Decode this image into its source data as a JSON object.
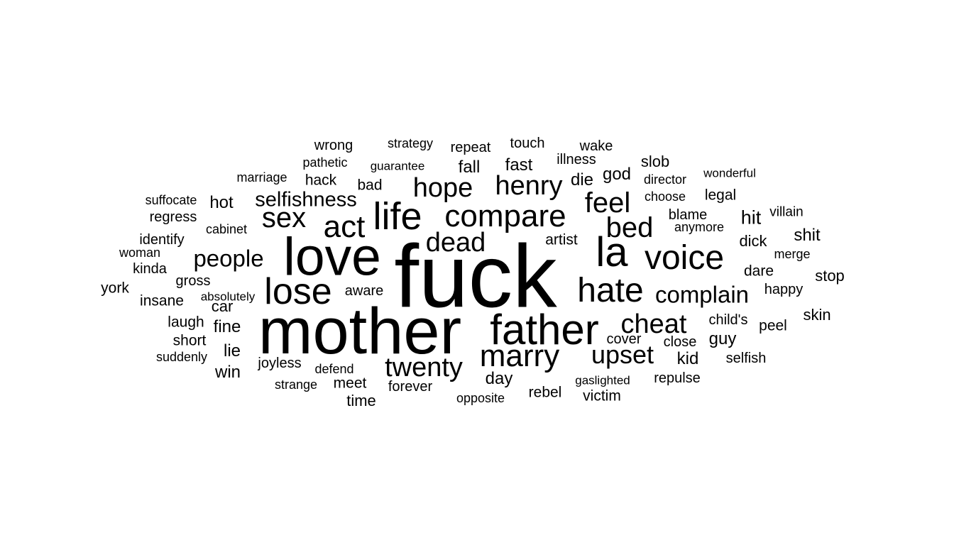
{
  "wordcloud": {
    "text_color": "#000000",
    "background": "#ffffff",
    "words": [
      {
        "text": "fuck",
        "weight": 100
      },
      {
        "text": "mother",
        "weight": 85
      },
      {
        "text": "love",
        "weight": 70
      },
      {
        "text": "father",
        "weight": 55
      },
      {
        "text": "la",
        "weight": 52
      },
      {
        "text": "life",
        "weight": 50
      },
      {
        "text": "lose",
        "weight": 48
      },
      {
        "text": "marry",
        "weight": 45
      },
      {
        "text": "voice",
        "weight": 45
      },
      {
        "text": "hate",
        "weight": 45
      },
      {
        "text": "compare",
        "weight": 40
      },
      {
        "text": "act",
        "weight": 40
      },
      {
        "text": "sex",
        "weight": 38
      },
      {
        "text": "feel",
        "weight": 38
      },
      {
        "text": "bed",
        "weight": 38
      },
      {
        "text": "twenty",
        "weight": 35
      },
      {
        "text": "cheat",
        "weight": 35
      },
      {
        "text": "hope",
        "weight": 35
      },
      {
        "text": "henry",
        "weight": 35
      },
      {
        "text": "dead",
        "weight": 35
      },
      {
        "text": "upset",
        "weight": 33
      },
      {
        "text": "complain",
        "weight": 32
      },
      {
        "text": "people",
        "weight": 32
      },
      {
        "text": "selfishness",
        "weight": 28
      },
      {
        "text": "hit",
        "weight": 25
      },
      {
        "text": "shit",
        "weight": 22
      },
      {
        "text": "fall",
        "weight": 22
      },
      {
        "text": "fast",
        "weight": 22
      },
      {
        "text": "hot",
        "weight": 22
      },
      {
        "text": "die",
        "weight": 22
      },
      {
        "text": "lie",
        "weight": 22
      },
      {
        "text": "car",
        "weight": 22
      },
      {
        "text": "fine",
        "weight": 22
      },
      {
        "text": "guy",
        "weight": 22
      },
      {
        "text": "kid",
        "weight": 22
      },
      {
        "text": "god",
        "weight": 22
      },
      {
        "text": "slob",
        "weight": 22
      },
      {
        "text": "stop",
        "weight": 22
      },
      {
        "text": "skin",
        "weight": 22
      },
      {
        "text": "day",
        "weight": 22
      },
      {
        "text": "time",
        "weight": 22
      },
      {
        "text": "win",
        "weight": 22
      },
      {
        "text": "wrong",
        "weight": 20
      },
      {
        "text": "touch",
        "weight": 20
      },
      {
        "text": "wake",
        "weight": 20
      },
      {
        "text": "repeat",
        "weight": 20
      },
      {
        "text": "hack",
        "weight": 20
      },
      {
        "text": "bad",
        "weight": 20
      },
      {
        "text": "legal",
        "weight": 20
      },
      {
        "text": "blame",
        "weight": 20
      },
      {
        "text": "dick",
        "weight": 20
      },
      {
        "text": "dare",
        "weight": 20
      },
      {
        "text": "artist",
        "weight": 20
      },
      {
        "text": "illness",
        "weight": 20
      },
      {
        "text": "york",
        "weight": 20
      },
      {
        "text": "insane",
        "weight": 20
      },
      {
        "text": "laugh",
        "weight": 20
      },
      {
        "text": "short",
        "weight": 20
      },
      {
        "text": "meet",
        "weight": 20
      },
      {
        "text": "forever",
        "weight": 20
      },
      {
        "text": "rebel",
        "weight": 20
      },
      {
        "text": "victim",
        "weight": 20
      },
      {
        "text": "peel",
        "weight": 20
      },
      {
        "text": "happy",
        "weight": 20
      },
      {
        "text": "close",
        "weight": 20
      },
      {
        "text": "cover",
        "weight": 20
      },
      {
        "text": "aware",
        "weight": 20
      },
      {
        "text": "child's",
        "weight": 20
      },
      {
        "text": "gross",
        "weight": 20
      },
      {
        "text": "kinda",
        "weight": 20
      },
      {
        "text": "regress",
        "weight": 20
      },
      {
        "text": "identify",
        "weight": 20
      },
      {
        "text": "joyless",
        "weight": 20
      },
      {
        "text": "selfish",
        "weight": 20
      },
      {
        "text": "repulse",
        "weight": 20
      },
      {
        "text": "merge",
        "weight": 18
      },
      {
        "text": "villain",
        "weight": 18
      },
      {
        "text": "strategy",
        "weight": 18
      },
      {
        "text": "pathetic",
        "weight": 18
      },
      {
        "text": "guarantee",
        "weight": 18
      },
      {
        "text": "marriage",
        "weight": 18
      },
      {
        "text": "director",
        "weight": 18
      },
      {
        "text": "wonderful",
        "weight": 18
      },
      {
        "text": "suffocate",
        "weight": 18
      },
      {
        "text": "choose",
        "weight": 18
      },
      {
        "text": "anymore",
        "weight": 18
      },
      {
        "text": "cabinet",
        "weight": 18
      },
      {
        "text": "woman",
        "weight": 18
      },
      {
        "text": "absolutely",
        "weight": 18
      },
      {
        "text": "suddenly",
        "weight": 18
      },
      {
        "text": "defend",
        "weight": 18
      },
      {
        "text": "strange",
        "weight": 18
      },
      {
        "text": "opposite",
        "weight": 18
      },
      {
        "text": "gaslighted",
        "weight": 18
      }
    ]
  }
}
